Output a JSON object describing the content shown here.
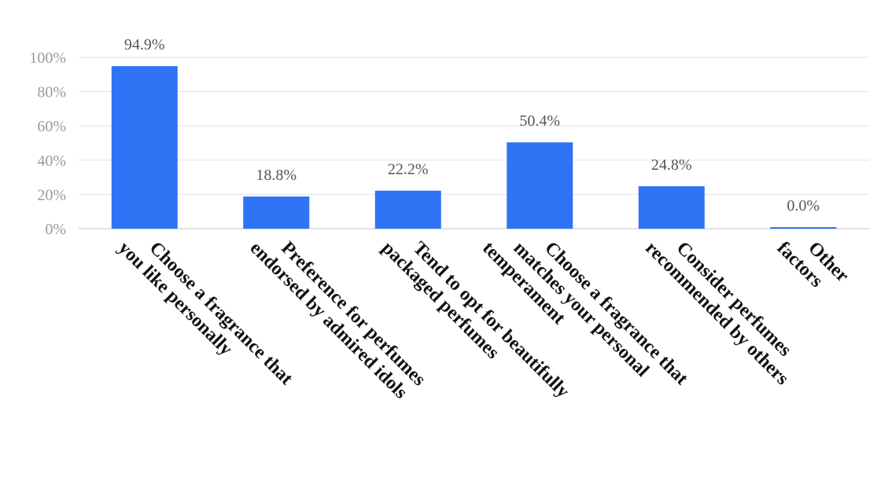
{
  "chart_data": {
    "type": "bar",
    "categories": [
      [
        "Choose a fragrance that",
        "you like personally"
      ],
      [
        "Preference for perfumes",
        "endorsed by admired idols"
      ],
      [
        "Tend to opt for beautifully",
        "packaged perfumes"
      ],
      [
        "Choose a fragrance that",
        "matches your personal",
        "temperament"
      ],
      [
        "Consider perfumes",
        "recommended by others"
      ],
      [
        "Other",
        "factors"
      ]
    ],
    "values": [
      94.9,
      18.8,
      22.2,
      50.4,
      24.8,
      0.0
    ],
    "value_labels": [
      "94.9%",
      "18.8%",
      "22.2%",
      "50.4%",
      "24.8%",
      "0.0%"
    ],
    "ylim": [
      0,
      100
    ],
    "yticks": [
      0,
      20,
      40,
      60,
      80,
      100
    ],
    "ytick_labels": [
      "0%",
      "20%",
      "40%",
      "60%",
      "80%",
      "100%"
    ],
    "grid": true,
    "bar_color": "#2f74f5",
    "title": "",
    "xlabel": "",
    "ylabel": ""
  }
}
